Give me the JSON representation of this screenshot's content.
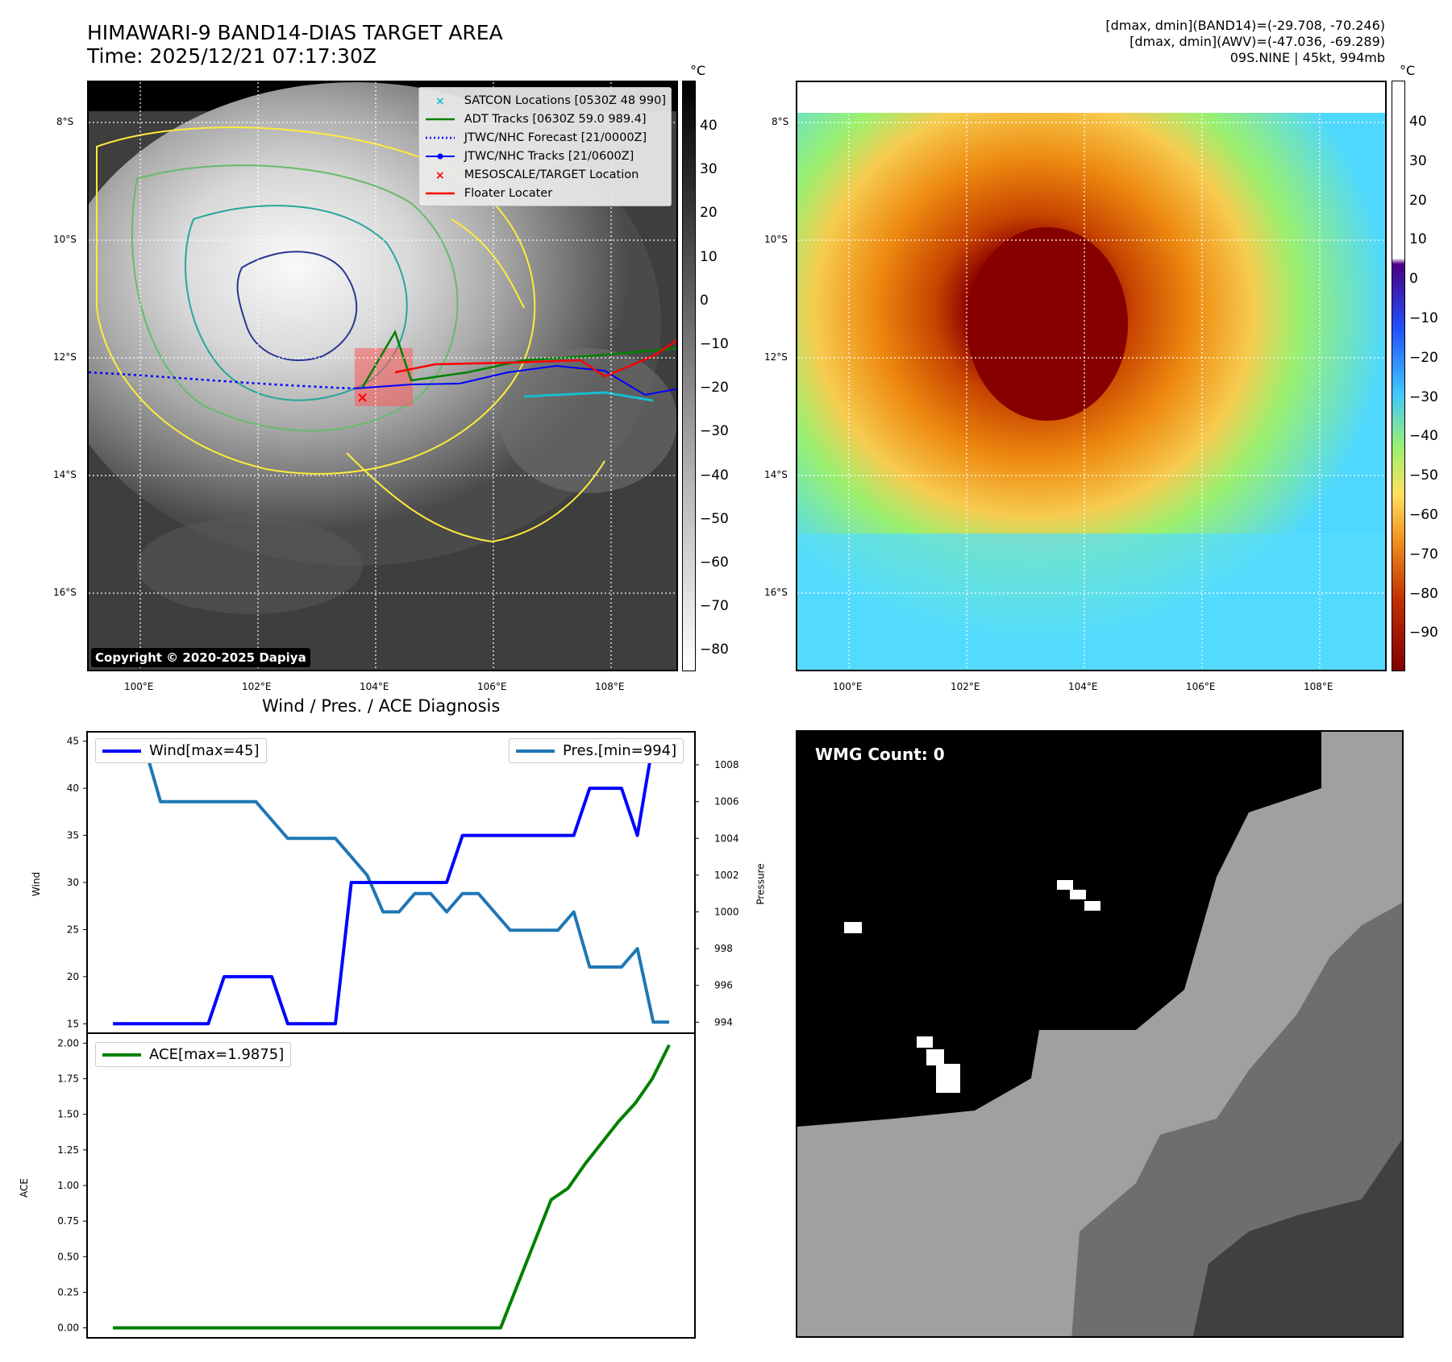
{
  "header": {
    "title": "HIMAWARI-9 BAND14-DIAS TARGET AREA",
    "time": "Time: 2025/12/21 07:17:30Z",
    "info_line1": "[dmax, dmin](BAND14)=(-29.708, -70.246)",
    "info_line2": "[dmax, dmin](AWV)=(-47.036, -69.289)",
    "info_line3": "09S.NINE | 45kt, 994mb"
  },
  "map_axes": {
    "lat_labels": [
      "8°S",
      "10°S",
      "12°S",
      "14°S",
      "16°S"
    ],
    "lon_labels": [
      "100°E",
      "102°E",
      "104°E",
      "106°E",
      "108°E"
    ]
  },
  "ir_panel": {
    "copyright": "Copyright © 2020-2025 Dapiya",
    "legend": [
      {
        "label": "SATCON Locations [0530Z 48 990]",
        "color": "#17becf",
        "kind": "x"
      },
      {
        "label": "ADT Tracks [0630Z 59.0 989.4]",
        "color": "#008000",
        "kind": "line"
      },
      {
        "label": "JTWC/NHC Forecast [21/0000Z]",
        "color": "#0000ff",
        "kind": "dotted"
      },
      {
        "label": "JTWC/NHC Tracks [21/0600Z]",
        "color": "#0000ff",
        "kind": "line-dot"
      },
      {
        "label": "MESOSCALE/TARGET Location",
        "color": "#ff0000",
        "kind": "x"
      },
      {
        "label": "Floater Locater",
        "color": "#ff0000",
        "kind": "line"
      }
    ],
    "colorbar_unit": "°C",
    "colorbar_ticks": [
      "40",
      "30",
      "20",
      "10",
      "0",
      "−10",
      "−20",
      "−30",
      "−40",
      "−50",
      "−60",
      "−70",
      "−80"
    ]
  },
  "awv_panel": {
    "colorbar_unit": "°C",
    "colorbar_ticks": [
      "40",
      "30",
      "20",
      "10",
      "0",
      "−10",
      "−20",
      "−30",
      "−40",
      "−50",
      "−60",
      "−70",
      "−80",
      "−90"
    ]
  },
  "wmg_panel": {
    "label": "WMG Count: 0"
  },
  "chart_data": [
    {
      "type": "line",
      "title": "Wind / Pres. / ACE Diagnosis",
      "ylabel": "Wind",
      "y2label": "Pressure",
      "ylim": [
        14,
        46
      ],
      "y2lim": [
        993.4,
        1009.8
      ],
      "yticks": [
        15,
        20,
        25,
        30,
        35,
        40,
        45
      ],
      "y2ticks": [
        994,
        996,
        998,
        1000,
        1002,
        1004,
        1006,
        1008
      ],
      "series": [
        {
          "name": "Wind[max=45]",
          "color": "#0000ff",
          "values": [
            15,
            15,
            15,
            15,
            15,
            15,
            15,
            20,
            20,
            20,
            20,
            15,
            15,
            15,
            15,
            30,
            30,
            30,
            30,
            30,
            30,
            30,
            35,
            35,
            35,
            35,
            35,
            35,
            35,
            35,
            40,
            40,
            40,
            35,
            45,
            45
          ]
        },
        {
          "name": "Pres.[min=994]",
          "color": "#1f77b4",
          "axis": "right",
          "values": [
            1009,
            1009,
            1009,
            1006,
            1006,
            1006,
            1006,
            1006,
            1006,
            1006,
            1005,
            1004,
            1004,
            1004,
            1004,
            1003,
            1002,
            1000,
            1000,
            1001,
            1001,
            1000,
            1001,
            1001,
            1000,
            999,
            999,
            999,
            999,
            1000,
            997,
            997,
            997,
            998,
            994,
            994
          ]
        }
      ]
    },
    {
      "type": "line",
      "ylabel": "ACE",
      "ylim": [
        -0.07,
        2.07
      ],
      "yticks": [
        "0.00",
        "0.25",
        "0.50",
        "0.75",
        "1.00",
        "1.25",
        "1.50",
        "1.75",
        "2.00"
      ],
      "series": [
        {
          "name": "ACE[max=1.9875]",
          "color": "#008000",
          "values": [
            0,
            0,
            0,
            0,
            0,
            0,
            0,
            0,
            0,
            0,
            0,
            0,
            0,
            0,
            0,
            0,
            0,
            0,
            0,
            0,
            0,
            0,
            0,
            0,
            0.3,
            0.6,
            0.9,
            0.98,
            1.15,
            1.3,
            1.45,
            1.58,
            1.75,
            1.9875
          ]
        }
      ]
    }
  ]
}
